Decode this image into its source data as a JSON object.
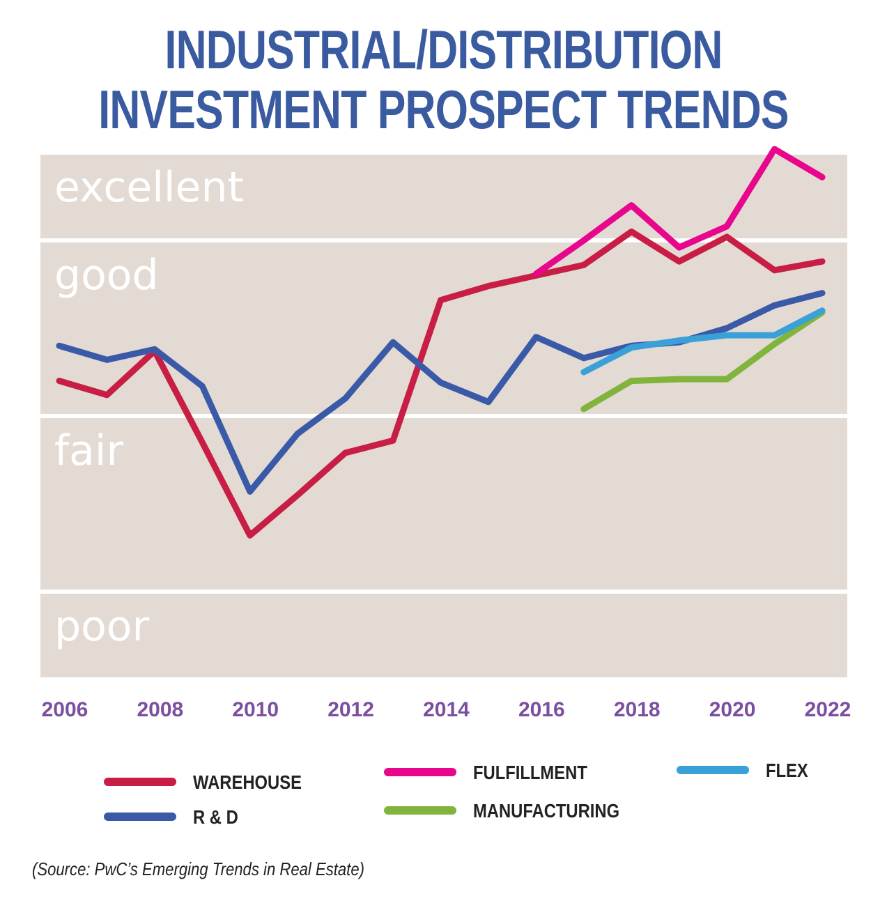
{
  "chart_data": {
    "type": "line",
    "title": "INDUSTRIAL/DISTRIBUTION INVESTMENT PROSPECT TRENDS",
    "xlabel": "",
    "ylabel": "",
    "x_tick_labels": [
      "2006",
      "2008",
      "2010",
      "2012",
      "2014",
      "2016",
      "2018",
      "2020",
      "2022"
    ],
    "y_band_labels": [
      {
        "label": "excellent",
        "from": 4.5,
        "to": 5.0
      },
      {
        "label": "good",
        "from": 3.5,
        "to": 4.5
      },
      {
        "label": "fair",
        "from": 2.5,
        "to": 3.5
      },
      {
        "label": "poor",
        "from": 2.0,
        "to": 2.5
      }
    ],
    "xlim": [
      2006,
      2022
    ],
    "ylim": [
      2.0,
      5.0
    ],
    "grid": false,
    "legend_placement": "bottom",
    "series": [
      {
        "name": "WAREHOUSE",
        "color": "#c81e45",
        "x": [
          2006,
          2007,
          2008,
          2009,
          2010,
          2011,
          2012,
          2013,
          2014,
          2015,
          2016,
          2017,
          2018,
          2019,
          2020,
          2021,
          2022
        ],
        "values": [
          3.7,
          3.62,
          3.87,
          3.35,
          2.82,
          3.05,
          3.29,
          3.36,
          4.16,
          4.24,
          4.3,
          4.36,
          4.55,
          4.38,
          4.52,
          4.33,
          4.38
        ]
      },
      {
        "name": "R & D",
        "color": "#3a5aa8",
        "x": [
          2006,
          2007,
          2008,
          2009,
          2010,
          2011,
          2012,
          2013,
          2014,
          2015,
          2016,
          2017,
          2018,
          2019,
          2020,
          2021,
          2022
        ],
        "values": [
          3.9,
          3.82,
          3.88,
          3.67,
          3.07,
          3.4,
          3.6,
          3.92,
          3.69,
          3.58,
          3.95,
          3.83,
          3.9,
          3.92,
          4.0,
          4.13,
          4.2
        ]
      },
      {
        "name": "FULFILLMENT",
        "color": "#e8068c",
        "x": [
          2016,
          2017,
          2018,
          2019,
          2020,
          2021,
          2022
        ],
        "values": [
          4.31,
          4.5,
          4.7,
          4.46,
          4.58,
          5.02,
          4.86
        ]
      },
      {
        "name": "MANUFACTURING",
        "color": "#80b43c",
        "x": [
          2017,
          2018,
          2019,
          2020,
          2021,
          2022
        ],
        "values": [
          3.54,
          3.7,
          3.71,
          3.71,
          3.91,
          4.09
        ]
      },
      {
        "name": "FLEX",
        "color": "#3aa0d8",
        "x": [
          2017,
          2018,
          2019,
          2020,
          2021,
          2022
        ],
        "values": [
          3.75,
          3.89,
          3.93,
          3.96,
          3.96,
          4.1
        ]
      }
    ],
    "source": "(Source: PwC’s Emerging Trends in Real Estate)"
  },
  "colors": {
    "title": "#3a5ba0",
    "band": "#e3dad3",
    "band_label": "#ffffff",
    "tick": "#7b4fa0",
    "legend_text": "#222222"
  }
}
